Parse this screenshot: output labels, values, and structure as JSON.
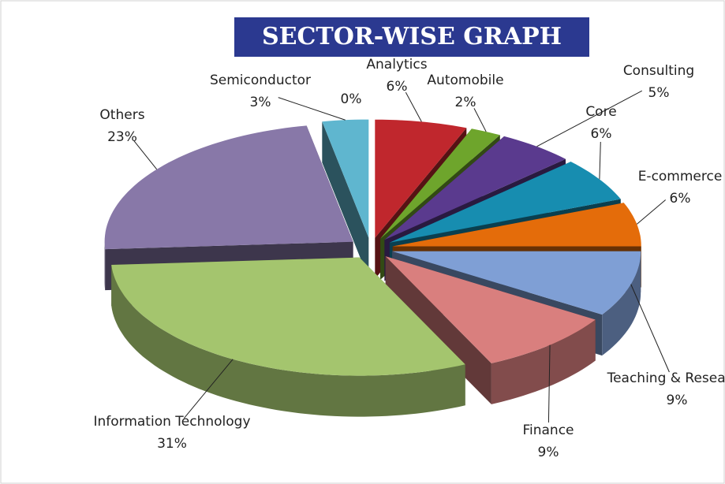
{
  "chart_data": {
    "type": "pie3d",
    "title": "SECTOR-WISE GRAPH",
    "categories": [
      "Analytics",
      "Automobile",
      "Consulting",
      "Core",
      "E-commerce",
      "Teaching & Research",
      "Finance",
      "Information Technology",
      "Others",
      "Semiconductor",
      null
    ],
    "values": [
      6,
      2,
      5,
      6,
      6,
      9,
      9,
      31,
      23,
      3,
      0
    ],
    "value_labels": [
      "6%",
      "2%",
      "5%",
      "6%",
      "6%",
      "9%",
      "9%",
      "31%",
      "23%",
      "3%",
      "0%"
    ],
    "colors": [
      "#c0272d",
      "#6ea52c",
      "#5a3a8e",
      "#178db0",
      "#e46c0a",
      "#7f9fd5",
      "#d97f7e",
      "#a4c56e",
      "#8878a8",
      "#5fb6cf",
      "#9bd0e0"
    ]
  }
}
